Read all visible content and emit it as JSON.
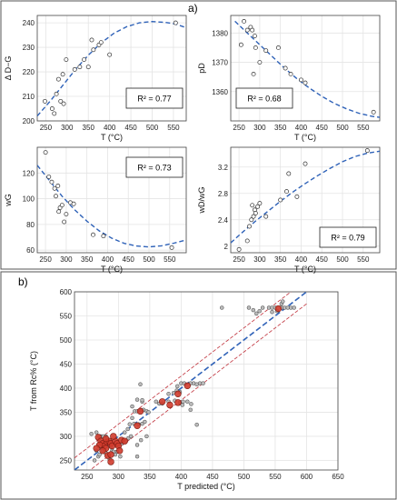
{
  "labels": {
    "a": "a)",
    "b": "b)"
  },
  "chart_data": [
    {
      "id": "p1",
      "type": "scatter",
      "xlabel": "T (°C)",
      "ylabel": "Δ D−G",
      "xlim": [
        230,
        580
      ],
      "ylim": [
        200,
        243
      ],
      "xticks": [
        250,
        300,
        350,
        400,
        450,
        500,
        550
      ],
      "yticks": [
        200,
        210,
        220,
        230,
        240
      ],
      "r2_label": "R² = 0.77",
      "points": [
        [
          248,
          208
        ],
        [
          265,
          205
        ],
        [
          270,
          203
        ],
        [
          275,
          211
        ],
        [
          280,
          217
        ],
        [
          285,
          208
        ],
        [
          290,
          219
        ],
        [
          292,
          207
        ],
        [
          298,
          225
        ],
        [
          318,
          221
        ],
        [
          330,
          222
        ],
        [
          340,
          225
        ],
        [
          350,
          222
        ],
        [
          358,
          233
        ],
        [
          362,
          229
        ],
        [
          375,
          231
        ],
        [
          380,
          232
        ],
        [
          400,
          227
        ],
        [
          555,
          240
        ]
      ],
      "fit": [
        [
          230,
          202
        ],
        [
          260,
          208
        ],
        [
          290,
          214.5
        ],
        [
          320,
          221
        ],
        [
          350,
          226.8
        ],
        [
          380,
          231.8
        ],
        [
          410,
          235.7
        ],
        [
          440,
          238.4
        ],
        [
          470,
          240
        ],
        [
          500,
          240.5
        ],
        [
          530,
          240.2
        ],
        [
          555,
          239.5
        ],
        [
          580,
          238
        ]
      ]
    },
    {
      "id": "p2",
      "type": "scatter",
      "xlabel": "T (°C)",
      "ylabel": "pD",
      "xlim": [
        230,
        590
      ],
      "ylim": [
        1350,
        1386
      ],
      "xticks": [
        250,
        300,
        350,
        400,
        450,
        500,
        550
      ],
      "yticks": [
        1360,
        1370,
        1380
      ],
      "r2_label": "R² = 0.68",
      "points": [
        [
          255,
          1376
        ],
        [
          262,
          1384
        ],
        [
          270,
          1381
        ],
        [
          278,
          1382
        ],
        [
          282,
          1381
        ],
        [
          285,
          1366
        ],
        [
          288,
          1379
        ],
        [
          290,
          1375
        ],
        [
          300,
          1370
        ],
        [
          315,
          1374
        ],
        [
          345,
          1375
        ],
        [
          362,
          1368
        ],
        [
          375,
          1366
        ],
        [
          400,
          1364
        ],
        [
          410,
          1363
        ],
        [
          575,
          1353
        ]
      ],
      "fit": [
        [
          240,
          1384
        ],
        [
          270,
          1380
        ],
        [
          300,
          1376
        ],
        [
          330,
          1372
        ],
        [
          360,
          1368
        ],
        [
          390,
          1364.4
        ],
        [
          420,
          1361.2
        ],
        [
          450,
          1358.4
        ],
        [
          480,
          1356
        ],
        [
          510,
          1354.1
        ],
        [
          540,
          1352.6
        ],
        [
          570,
          1351.6
        ],
        [
          590,
          1351.2
        ]
      ]
    },
    {
      "id": "p3",
      "type": "scatter",
      "xlabel": "T (°C)",
      "ylabel": "wG",
      "xlim": [
        230,
        590
      ],
      "ylim": [
        58,
        140
      ],
      "xticks": [
        250,
        300,
        350,
        400,
        450,
        500,
        550
      ],
      "yticks": [
        60,
        80,
        100,
        120
      ],
      "r2_label": "R² = 0.73",
      "points": [
        [
          250,
          136
        ],
        [
          258,
          117
        ],
        [
          265,
          113
        ],
        [
          272,
          108
        ],
        [
          275,
          102
        ],
        [
          280,
          110
        ],
        [
          282,
          90
        ],
        [
          285,
          93
        ],
        [
          290,
          95
        ],
        [
          295,
          82
        ],
        [
          300,
          88
        ],
        [
          310,
          97
        ],
        [
          318,
          96
        ],
        [
          365,
          72
        ],
        [
          390,
          71
        ],
        [
          555,
          62
        ]
      ],
      "fit": [
        [
          230,
          126
        ],
        [
          260,
          114
        ],
        [
          290,
          102
        ],
        [
          320,
          91.5
        ],
        [
          350,
          82.5
        ],
        [
          380,
          75
        ],
        [
          410,
          69.3
        ],
        [
          440,
          65.3
        ],
        [
          470,
          63.2
        ],
        [
          500,
          62.5
        ],
        [
          530,
          63.4
        ],
        [
          560,
          65.4
        ],
        [
          590,
          68
        ]
      ]
    },
    {
      "id": "p4",
      "type": "scatter",
      "xlabel": "T (°C)",
      "ylabel": "wD/wG",
      "xlim": [
        230,
        590
      ],
      "ylim": [
        1.9,
        3.5
      ],
      "xticks": [
        250,
        300,
        350,
        400,
        450,
        500,
        550
      ],
      "yticks": [
        2,
        2.4,
        2.8,
        3.2
      ],
      "r2_label": "R² = 0.79",
      "points": [
        [
          250,
          1.95
        ],
        [
          270,
          2.08
        ],
        [
          275,
          2.3
        ],
        [
          280,
          2.4
        ],
        [
          282,
          2.62
        ],
        [
          285,
          2.45
        ],
        [
          288,
          2.55
        ],
        [
          290,
          2.5
        ],
        [
          295,
          2.6
        ],
        [
          300,
          2.65
        ],
        [
          315,
          2.45
        ],
        [
          350,
          2.7
        ],
        [
          365,
          2.83
        ],
        [
          370,
          3.1
        ],
        [
          390,
          2.75
        ],
        [
          410,
          3.25
        ],
        [
          560,
          3.45
        ]
      ],
      "fit": [
        [
          230,
          2.05
        ],
        [
          260,
          2.22
        ],
        [
          290,
          2.38
        ],
        [
          320,
          2.53
        ],
        [
          350,
          2.68
        ],
        [
          380,
          2.82
        ],
        [
          410,
          2.95
        ],
        [
          440,
          3.07
        ],
        [
          470,
          3.18
        ],
        [
          500,
          3.28
        ],
        [
          530,
          3.36
        ],
        [
          560,
          3.41
        ],
        [
          590,
          3.44
        ]
      ]
    },
    {
      "id": "p5",
      "type": "scatter",
      "xlabel": "T predicted (°C)",
      "ylabel": "T from Rc% (°C)",
      "xlim": [
        230,
        650
      ],
      "ylim": [
        230,
        600
      ],
      "xticks": [
        250,
        300,
        350,
        400,
        450,
        500,
        550,
        600,
        650
      ],
      "yticks": [
        250,
        300,
        350,
        400,
        450,
        500,
        550,
        600
      ],
      "fit_line": [
        [
          230,
          230
        ],
        [
          600,
          600
        ]
      ],
      "band": 25,
      "grey_points": [
        [
          262,
          250
        ],
        [
          268,
          258
        ],
        [
          270,
          262
        ],
        [
          265,
          270
        ],
        [
          268,
          282
        ],
        [
          272,
          278
        ],
        [
          275,
          270
        ],
        [
          272,
          300
        ],
        [
          278,
          296
        ],
        [
          280,
          265
        ],
        [
          282,
          288
        ],
        [
          285,
          282
        ],
        [
          288,
          278
        ],
        [
          290,
          270
        ],
        [
          292,
          268
        ],
        [
          295,
          262
        ],
        [
          300,
          280
        ],
        [
          305,
          285
        ],
        [
          308,
          292
        ],
        [
          312,
          290
        ],
        [
          316,
          296
        ],
        [
          320,
          300
        ],
        [
          303,
          258
        ],
        [
          298,
          268
        ],
        [
          315,
          315
        ],
        [
          318,
          325
        ],
        [
          325,
          326
        ],
        [
          332,
          325
        ],
        [
          338,
          326
        ],
        [
          342,
          330
        ],
        [
          322,
          338
        ],
        [
          326,
          352
        ],
        [
          330,
          352
        ],
        [
          335,
          354
        ],
        [
          340,
          355
        ],
        [
          345,
          352
        ],
        [
          348,
          350
        ],
        [
          322,
          362
        ],
        [
          330,
          376
        ],
        [
          338,
          372
        ],
        [
          360,
          372
        ],
        [
          365,
          368
        ],
        [
          370,
          368
        ],
        [
          380,
          372
        ],
        [
          390,
          374
        ],
        [
          398,
          370
        ],
        [
          403,
          372
        ],
        [
          410,
          372
        ],
        [
          416,
          367
        ],
        [
          380,
          388
        ],
        [
          388,
          390
        ],
        [
          393,
          395
        ],
        [
          398,
          392
        ],
        [
          400,
          410
        ],
        [
          405,
          410
        ],
        [
          415,
          410
        ],
        [
          420,
          410
        ],
        [
          425,
          408
        ],
        [
          430,
          410
        ],
        [
          435,
          410
        ],
        [
          425,
          324
        ],
        [
          415,
          355
        ],
        [
          335,
          408
        ],
        [
          310,
          308
        ],
        [
          265,
          308
        ],
        [
          270,
          300
        ],
        [
          280,
          300
        ],
        [
          257,
          305
        ],
        [
          330,
          282
        ],
        [
          336,
          292
        ],
        [
          345,
          300
        ],
        [
          330,
          258
        ],
        [
          465,
          567
        ],
        [
          530,
          567
        ],
        [
          540,
          567
        ],
        [
          545,
          567
        ],
        [
          550,
          567
        ],
        [
          560,
          567
        ],
        [
          565,
          567
        ],
        [
          570,
          567
        ],
        [
          575,
          567
        ],
        [
          580,
          567
        ],
        [
          560,
          575
        ],
        [
          562,
          580
        ],
        [
          545,
          558
        ],
        [
          553,
          560
        ],
        [
          520,
          555
        ],
        [
          525,
          560
        ],
        [
          515,
          562
        ],
        [
          508,
          567
        ],
        [
          338,
          375
        ],
        [
          402,
          365
        ],
        [
          394,
          404
        ],
        [
          286,
          252
        ],
        [
          276,
          300
        ]
      ],
      "red_points": [
        [
          268,
          298
        ],
        [
          272,
          290
        ],
        [
          275,
          285
        ],
        [
          278,
          280
        ],
        [
          280,
          275
        ],
        [
          282,
          288
        ],
        [
          285,
          290
        ],
        [
          288,
          285
        ],
        [
          290,
          280
        ],
        [
          275,
          270
        ],
        [
          283,
          260
        ],
        [
          288,
          247
        ],
        [
          295,
          290
        ],
        [
          298,
          285
        ],
        [
          300,
          280
        ],
        [
          305,
          292
        ],
        [
          310,
          290
        ],
        [
          270,
          282
        ],
        [
          265,
          275
        ],
        [
          280,
          295
        ],
        [
          292,
          300
        ],
        [
          302,
          270
        ],
        [
          330,
          322
        ],
        [
          335,
          352
        ],
        [
          395,
          370
        ],
        [
          410,
          405
        ],
        [
          395,
          388
        ],
        [
          382,
          365
        ],
        [
          370,
          372
        ],
        [
          288,
          262
        ],
        [
          555,
          565
        ]
      ]
    }
  ]
}
